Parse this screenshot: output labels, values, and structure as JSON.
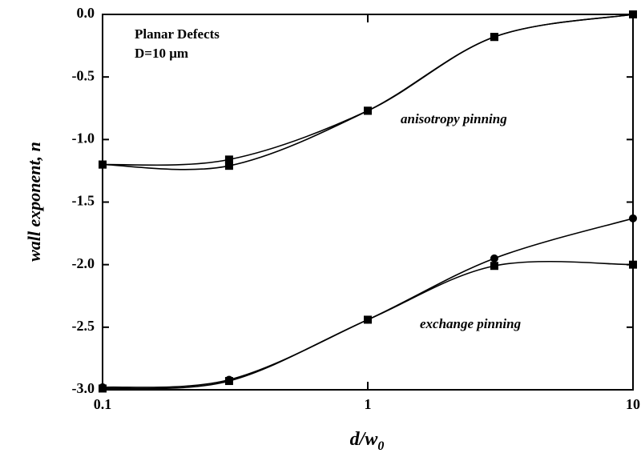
{
  "chart_data": {
    "type": "line",
    "log_x": true,
    "xlabel": [
      "d/w",
      "0"
    ],
    "ylabel": "wall exponent, n",
    "annotations": [
      "Planar Defects",
      "D=10 μm",
      "anisotropy pinning",
      "exchange pinning"
    ],
    "x": [
      0.1,
      0.3,
      1,
      3,
      10
    ],
    "series": [
      {
        "color": "#000000",
        "marker": "square",
        "values": [
          -1.2,
          -1.16,
          -0.77,
          -0.18,
          0.0
        ]
      },
      {
        "color": "#000000",
        "marker": "square",
        "values": [
          -1.2,
          -1.21,
          -0.77,
          -0.18,
          0.0
        ]
      },
      {
        "color": "#000000",
        "marker": "circle",
        "values": [
          -2.98,
          -2.92,
          -2.44,
          -1.95,
          -1.63
        ]
      },
      {
        "color": "#000000",
        "marker": "square",
        "values": [
          -2.99,
          -2.93,
          -2.44,
          -2.01,
          -2.0
        ]
      }
    ],
    "xlim": [
      0.1,
      10
    ],
    "xticks": [
      0.1,
      1,
      10
    ],
    "ylim": [
      -3.0,
      0.0
    ],
    "yticks": [
      {
        "value": -3.0,
        "label": "-3.0"
      },
      -2.5,
      {
        "value": -2.0,
        "label": "-2.0"
      },
      -1.5,
      {
        "value": -1.0,
        "label": "-1.0"
      },
      -0.5,
      {
        "value": 0.0,
        "label": "0.0"
      }
    ],
    "grid": false
  }
}
